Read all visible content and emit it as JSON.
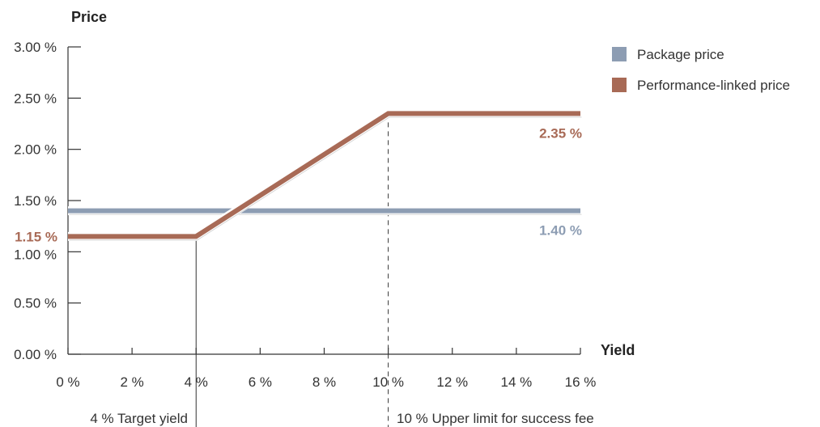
{
  "chart_data": {
    "type": "line",
    "title": "",
    "ylabel": "Price",
    "xlabel": "Yield",
    "xlim": [
      0,
      16
    ],
    "ylim": [
      0,
      3
    ],
    "x_ticks": [
      0,
      2,
      4,
      6,
      8,
      10,
      12,
      14,
      16
    ],
    "x_tick_labels": [
      "0 %",
      "2 %",
      "4 %",
      "6 %",
      "8 %",
      "10 %",
      "12 %",
      "14 %",
      "16 %"
    ],
    "y_ticks": [
      0,
      0.5,
      1.0,
      1.5,
      2.0,
      2.5,
      3.0
    ],
    "y_tick_labels": [
      "0.00 %",
      "0.50 %",
      "1.00 %",
      "1.50 %",
      "2.00 %",
      "2.50 %",
      "3.00 %"
    ],
    "grid": false,
    "legend_position": "top-right",
    "series": [
      {
        "name": "Package price",
        "color": "#8d9db3",
        "x": [
          0,
          16
        ],
        "y": [
          1.4,
          1.4
        ],
        "label": "1.40 %"
      },
      {
        "name": "Performance-linked price",
        "color": "#a86a56",
        "x": [
          0,
          4,
          10,
          16
        ],
        "y": [
          1.15,
          1.15,
          2.35,
          2.35
        ],
        "label": "2.35 %",
        "start_label": "1.15 %"
      }
    ],
    "annotations": [
      {
        "x": 4,
        "style": "solid",
        "text": "4 % Target yield"
      },
      {
        "x": 10,
        "style": "dashed",
        "text": "10 % Upper limit for success fee"
      }
    ]
  }
}
